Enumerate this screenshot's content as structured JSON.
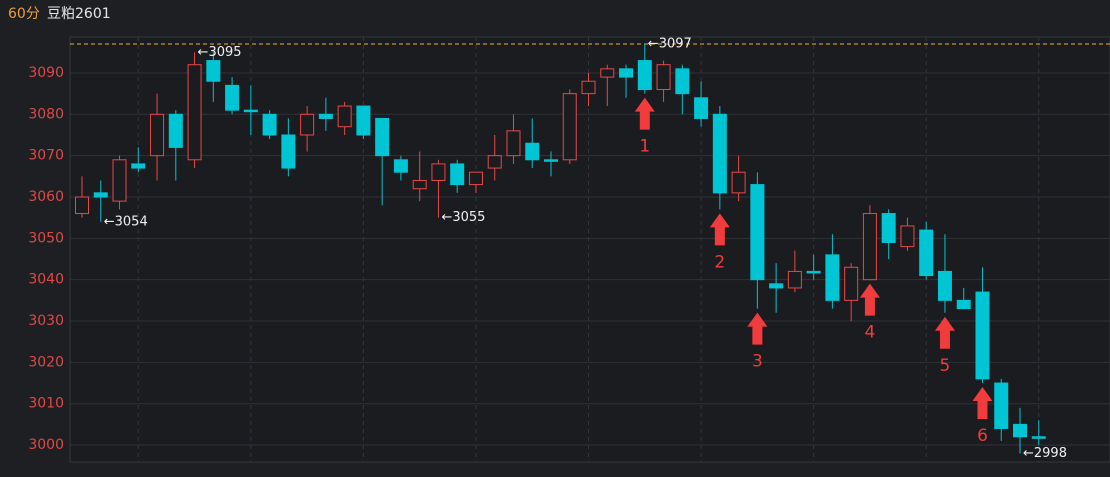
{
  "chart_data": {
    "type": "candlestick",
    "period": "60分",
    "title": "豆粕2601",
    "up_color": "#e84848",
    "down_color": "#00c5d4",
    "ylim": [
      2995.9,
      3098.7
    ],
    "yticks": [
      3000,
      3010,
      3020,
      3030,
      3040,
      3050,
      3060,
      3070,
      3080,
      3090
    ],
    "grid": true,
    "open": [
      3056,
      3061,
      3059,
      3068,
      3070,
      3080,
      3069,
      3093,
      3087,
      3081,
      3080,
      3075,
      3075,
      3080,
      3077,
      3082,
      3079,
      3069,
      3062,
      3064,
      3068,
      3063,
      3067,
      3070,
      3073,
      3069,
      3069,
      3085,
      3089,
      3091,
      3093,
      3086,
      3091,
      3084,
      3080,
      3061,
      3063,
      3039,
      3038,
      3042,
      3046,
      3035,
      3040,
      3056,
      3048,
      3052,
      3042,
      3035,
      3037,
      3015,
      3005,
      3002
    ],
    "close": [
      3060,
      3060,
      3069,
      3067,
      3080,
      3072,
      3092,
      3088,
      3081,
      3081,
      3075,
      3067,
      3080,
      3079,
      3082,
      3075,
      3070,
      3066,
      3064,
      3068,
      3063,
      3066,
      3070,
      3076,
      3069,
      3069,
      3085,
      3088,
      3091,
      3089,
      3086,
      3092,
      3085,
      3079,
      3061,
      3066,
      3040,
      3038,
      3042,
      3042,
      3035,
      3043,
      3056,
      3049,
      3053,
      3041,
      3035,
      3033,
      3016,
      3004,
      3002,
      3002
    ],
    "high": [
      3065,
      3064,
      3070,
      3072,
      3085,
      3081,
      3095,
      3095,
      3089,
      3087,
      3081,
      3079,
      3082,
      3084,
      3083,
      3082,
      3079,
      3070,
      3071,
      3069,
      3069,
      3066,
      3075,
      3080,
      3079,
      3071,
      3086,
      3090,
      3092,
      3092,
      3097,
      3093,
      3092,
      3088,
      3082,
      3070,
      3066,
      3044,
      3047,
      3046,
      3051,
      3044,
      3058,
      3057,
      3055,
      3054,
      3051,
      3038,
      3043,
      3016,
      3009,
      3006
    ],
    "low": [
      3055,
      3054,
      3057,
      3066,
      3064,
      3064,
      3067,
      3083,
      3080,
      3075,
      3074,
      3065,
      3071,
      3076,
      3075,
      3074,
      3058,
      3064,
      3059,
      3055,
      3061,
      3061,
      3064,
      3068,
      3067,
      3065,
      3068,
      3082,
      3082,
      3084,
      3085,
      3083,
      3080,
      3077,
      3057,
      3059,
      3033,
      3032,
      3037,
      3040,
      3033,
      3030,
      3040,
      3045,
      3047,
      3040,
      3032,
      3033,
      3015,
      3001,
      2998,
      3000
    ],
    "hline": {
      "value": 3097,
      "color": "#e8b040"
    },
    "extremes": [
      {
        "x": 1,
        "value": 3054,
        "label": "←3054"
      },
      {
        "x": 6,
        "value": 3095,
        "label": "←3095"
      },
      {
        "x": 19,
        "value": 3055,
        "label": "←3055"
      },
      {
        "x": 30,
        "value": 3097,
        "label": "←3097"
      },
      {
        "x": 50,
        "value": 2998,
        "label": "←2998"
      }
    ],
    "signals": [
      {
        "x": 30,
        "label": "1"
      },
      {
        "x": 34,
        "label": "2"
      },
      {
        "x": 36,
        "label": "3"
      },
      {
        "x": 42,
        "label": "4"
      },
      {
        "x": 46,
        "label": "5"
      },
      {
        "x": 48,
        "label": "6"
      }
    ],
    "signal_color": "#f03c3c"
  }
}
